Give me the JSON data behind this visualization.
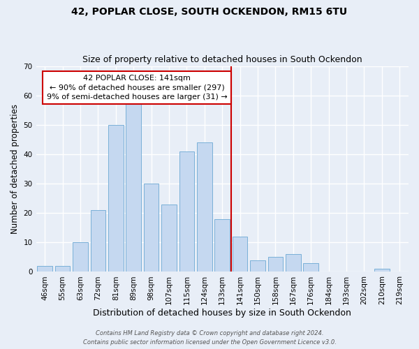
{
  "title": "42, POPLAR CLOSE, SOUTH OCKENDON, RM15 6TU",
  "subtitle": "Size of property relative to detached houses in South Ockendon",
  "xlabel": "Distribution of detached houses by size in South Ockendon",
  "ylabel": "Number of detached properties",
  "bar_labels": [
    "46sqm",
    "55sqm",
    "63sqm",
    "72sqm",
    "81sqm",
    "89sqm",
    "98sqm",
    "107sqm",
    "115sqm",
    "124sqm",
    "133sqm",
    "141sqm",
    "150sqm",
    "158sqm",
    "167sqm",
    "176sqm",
    "184sqm",
    "193sqm",
    "202sqm",
    "210sqm",
    "219sqm"
  ],
  "bar_heights": [
    2,
    2,
    10,
    21,
    50,
    58,
    30,
    23,
    41,
    44,
    18,
    12,
    4,
    5,
    6,
    3,
    0,
    0,
    0,
    1,
    0
  ],
  "bar_color": "#c5d8f0",
  "bar_edge_color": "#7ab0d8",
  "bg_color": "#e8eef7",
  "grid_color": "#ffffff",
  "vline_index": 11,
  "vline_color": "#cc0000",
  "annotation_title": "42 POPLAR CLOSE: 141sqm",
  "annotation_line1": "← 90% of detached houses are smaller (297)",
  "annotation_line2": "9% of semi-detached houses are larger (31) →",
  "ylim": [
    0,
    70
  ],
  "yticks": [
    0,
    10,
    20,
    30,
    40,
    50,
    60,
    70
  ],
  "footer_line1": "Contains HM Land Registry data © Crown copyright and database right 2024.",
  "footer_line2": "Contains public sector information licensed under the Open Government Licence v3.0.",
  "title_fontsize": 10,
  "subtitle_fontsize": 9,
  "xlabel_fontsize": 9,
  "ylabel_fontsize": 8.5,
  "tick_fontsize": 7.5,
  "annotation_fontsize": 8,
  "footer_fontsize": 6
}
